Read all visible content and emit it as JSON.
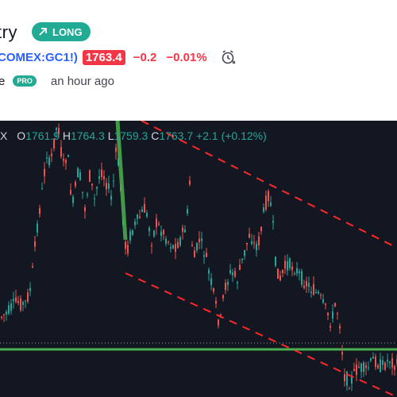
{
  "header": {
    "title": "try",
    "badge_label": "LONG",
    "symbol": "COMEX:GC1!)",
    "price": "1763.4",
    "change": "−0.2",
    "change_pct": "−0.01%",
    "author_fragment": "e",
    "pro_label": "PRO",
    "time_ago": "an hour ago",
    "colors": {
      "accent": "#22ab94",
      "negative": "#f23645",
      "link": "#2962ff"
    }
  },
  "chart": {
    "close_label": "X",
    "ohlc": {
      "open_key": "O",
      "open": "1761.9",
      "high_key": "H",
      "high": "1764.3",
      "low_key": "L",
      "low": "1759.3",
      "close_key": "C",
      "close": "1763.7",
      "change": "+2.1",
      "change_pct": "(+0.12%)"
    },
    "colors": {
      "background": "#131722",
      "up": "#26a69a",
      "down": "#ef5350",
      "trendline": "#ff2828",
      "support": "#4caf50"
    }
  }
}
